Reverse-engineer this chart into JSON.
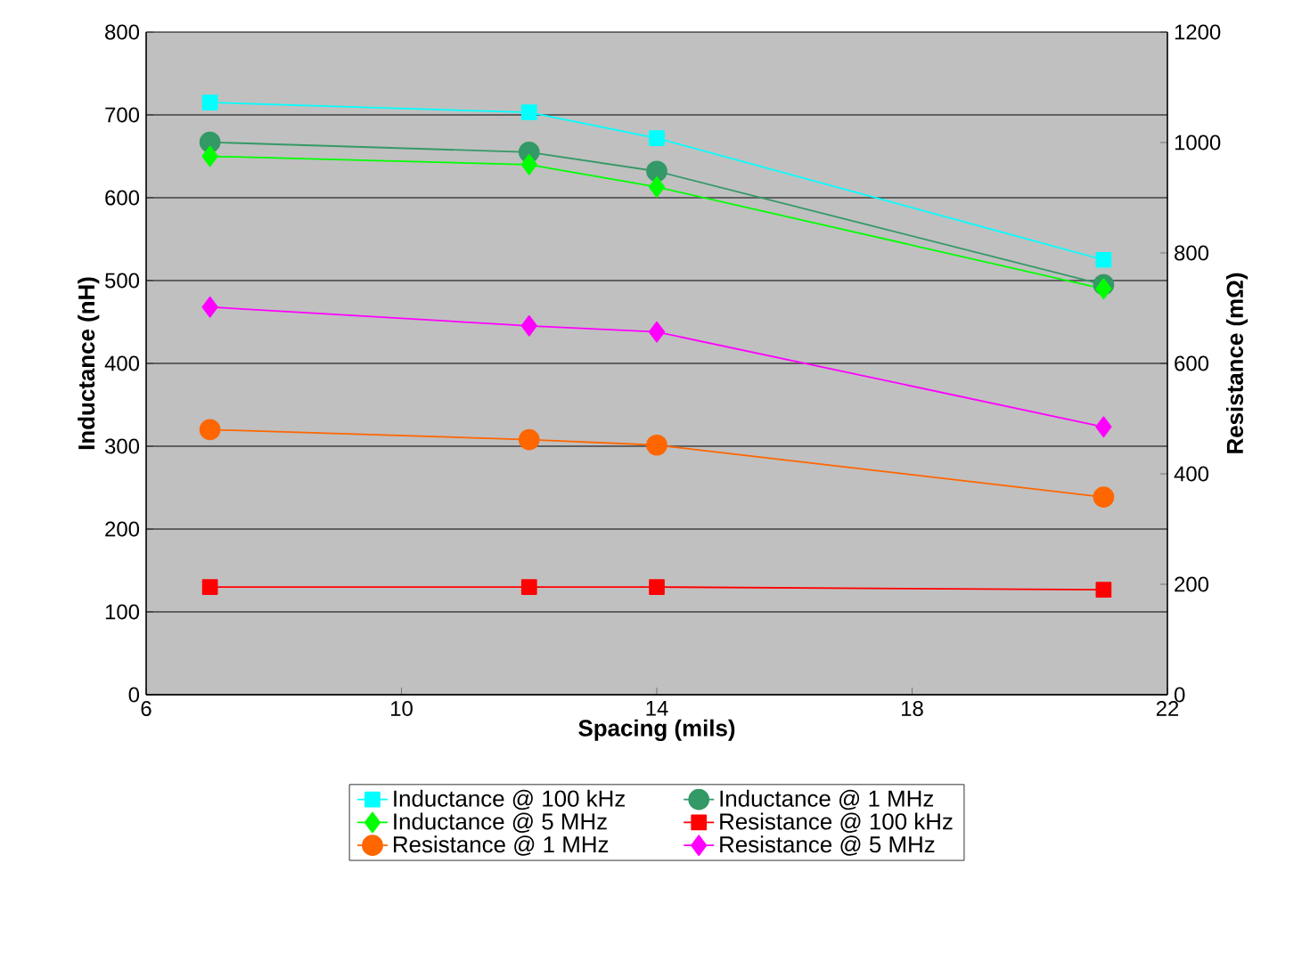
{
  "chart_data": {
    "type": "line",
    "xlabel": "Spacing (mils)",
    "ylabel": "Inductance (nH)",
    "y2label": "Resistance (mΩ)",
    "x": [
      7,
      12,
      14,
      21
    ],
    "xlim": [
      6,
      22
    ],
    "xticks": [
      6,
      10,
      14,
      18,
      22
    ],
    "ylim": [
      0,
      800
    ],
    "yticks": [
      0,
      100,
      200,
      300,
      400,
      500,
      600,
      700,
      800
    ],
    "y2lim": [
      0,
      1200
    ],
    "y2ticks": [
      0,
      200,
      400,
      600,
      800,
      1000,
      1200
    ],
    "grid": "y",
    "legend": "bottom",
    "series": [
      {
        "name": "Inductance @ 100 kHz",
        "color": "#00ffff",
        "marker": "square",
        "values": [
          715,
          703,
          672,
          525
        ]
      },
      {
        "name": "Inductance @ 1 MHz",
        "color": "#339966",
        "marker": "circle",
        "values": [
          667,
          655,
          632,
          495
        ]
      },
      {
        "name": "Inductance @ 5 MHz",
        "color": "#00ff00",
        "marker": "diamond",
        "values": [
          650,
          640,
          613,
          490
        ]
      },
      {
        "name": "Resistance @ 100 kHz",
        "color": "#ff0000",
        "marker": "square",
        "axis": "y2",
        "values": [
          195,
          195,
          195,
          190
        ]
      },
      {
        "name": "Resistance @ 1 MHz",
        "color": "#ff6600",
        "marker": "circle",
        "axis": "y2",
        "values": [
          480,
          462,
          452,
          358
        ]
      },
      {
        "name": "Resistance @ 5 MHz",
        "color": "#ff00ff",
        "marker": "diamond",
        "axis": "y2",
        "values": [
          702,
          668,
          657,
          485
        ]
      }
    ]
  }
}
